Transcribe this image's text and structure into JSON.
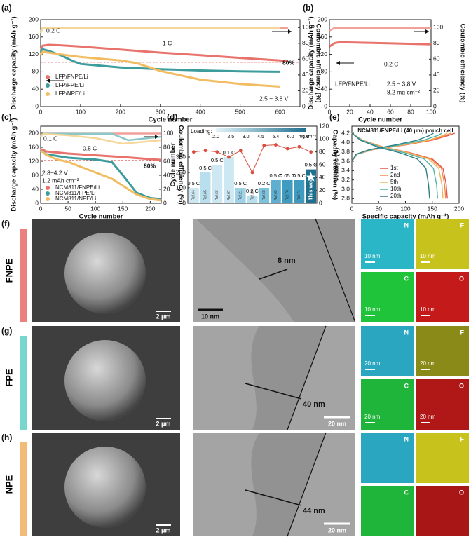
{
  "chart_data": [
    {
      "type": "line",
      "label": "(a)",
      "xlabel": "Cycle number",
      "ylabel": "Discharge capacity (mAh g⁻¹)",
      "y2label": "Coulombic efficiency (%)",
      "xlim": [
        0,
        650
      ],
      "xticks": [
        0,
        100,
        200,
        300,
        400,
        500,
        600
      ],
      "ylim": [
        0,
        200
      ],
      "yticks": [
        0,
        40,
        80,
        120,
        160,
        200
      ],
      "y2lim": [
        0,
        110
      ],
      "y2ticks": [
        0,
        20,
        40,
        60,
        80,
        100
      ],
      "ref_line": 102,
      "ref_color": "#d62728",
      "legend": "lower left",
      "series": [
        {
          "name": "LFP/FNPE/Li",
          "color": "#e8736c",
          "x": [
            0,
            5,
            20,
            50,
            100,
            200,
            300,
            400,
            500,
            600,
            620
          ],
          "values": [
            128,
            140,
            142,
            141,
            138,
            131,
            124,
            118,
            112,
            106,
            104
          ]
        },
        {
          "name": "LFP/FPE/Li",
          "color": "#3d9c9c",
          "x": [
            0,
            5,
            20,
            50,
            80,
            100,
            200,
            300,
            400,
            500,
            600
          ],
          "values": [
            125,
            132,
            128,
            118,
            105,
            98,
            90,
            86,
            83,
            81,
            80
          ]
        },
        {
          "name": "LFP/NPE/Li",
          "color": "#f2bd62",
          "x": [
            0,
            5,
            20,
            50,
            100,
            200,
            240,
            300,
            400,
            500,
            600
          ],
          "values": [
            118,
            126,
            124,
            120,
            114,
            106,
            100,
            82,
            62,
            52,
            46
          ]
        }
      ],
      "ce_series": [
        {
          "color": "#f2a09a",
          "axis": "y2",
          "x": [
            0,
            5,
            620
          ],
          "values": [
            95,
            99.6,
            99.6
          ]
        },
        {
          "color": "#8cc7c7",
          "axis": "y2",
          "x": [
            0,
            5,
            600
          ],
          "values": [
            94,
            99.4,
            99.4
          ]
        },
        {
          "color": "#f6d79a",
          "axis": "y2",
          "x": [
            0,
            5,
            600
          ],
          "values": [
            93,
            99.2,
            99.2
          ]
        }
      ],
      "annotations": [
        "0.2 C",
        "1 C",
        "80%",
        "2.5 ~ 3.8 V"
      ]
    },
    {
      "type": "line",
      "label": "(b)",
      "xlabel": "Cycle number",
      "ylabel": "Discharge capacity (mAh g⁻¹)",
      "y2label": "Coulombic efficiency (%)",
      "xlim": [
        0,
        100
      ],
      "xticks": [
        0,
        20,
        40,
        60,
        80,
        100
      ],
      "ylim": [
        0,
        200
      ],
      "yticks": [
        0,
        40,
        80,
        120,
        160,
        200
      ],
      "y2lim": [
        0,
        110
      ],
      "y2ticks": [
        0,
        20,
        40,
        60,
        80,
        100
      ],
      "series": [
        {
          "name": "LFP/FNPE/Li",
          "color": "#e8736c",
          "x": [
            0,
            5,
            10,
            50,
            100
          ],
          "values": [
            138,
            146,
            148,
            146,
            143
          ]
        }
      ],
      "ce_series": [
        {
          "color": "#f2a09a",
          "axis": "y2",
          "x": [
            0,
            5,
            100
          ],
          "values": [
            96,
            99.5,
            99.5
          ]
        }
      ],
      "annotations": [
        "0.2 C",
        "2.5 ~ 3.8 V",
        "8.2 mg cm⁻²"
      ]
    },
    {
      "type": "line",
      "label": "(c)",
      "xlabel": "Cycle number",
      "ylabel": "Discharge capacity (mAh g⁻¹)",
      "y2label": "Coulombic efficiency (%)",
      "xlim": [
        0,
        220
      ],
      "xticks": [
        0,
        50,
        100,
        150,
        200
      ],
      "ylim": [
        0,
        220
      ],
      "yticks": [
        0,
        40,
        80,
        120,
        160,
        200
      ],
      "y2lim": [
        0,
        110
      ],
      "y2ticks": [
        0,
        20,
        40,
        60,
        80,
        100
      ],
      "ref_line": 122,
      "ref_color": "#d62728",
      "legend": "lower left",
      "series": [
        {
          "name": "NCM811/FNPE/Li",
          "color": "#e8736c",
          "x": [
            0,
            5,
            10,
            50,
            100,
            150,
            200,
            220
          ],
          "values": [
            155,
            152,
            148,
            142,
            137,
            132,
            126,
            124
          ]
        },
        {
          "name": "NCM811/FPE/Li",
          "color": "#3d9c9c",
          "x": [
            0,
            5,
            10,
            50,
            100,
            130,
            150,
            175,
            200,
            220
          ],
          "values": [
            150,
            146,
            140,
            130,
            125,
            118,
            80,
            30,
            15,
            12
          ]
        },
        {
          "name": "NCM811/NPE/Li",
          "color": "#f2bd62",
          "x": [
            0,
            5,
            10,
            30,
            50,
            80,
            100,
            130,
            150,
            175,
            200,
            220
          ],
          "values": [
            150,
            145,
            138,
            125,
            118,
            100,
            88,
            70,
            50,
            25,
            12,
            8
          ]
        }
      ],
      "ce_series": [
        {
          "color": "#f2a09a",
          "axis": "y2",
          "x": [
            0,
            5,
            220
          ],
          "values": [
            95,
            99.5,
            99.5
          ]
        },
        {
          "color": "#8cc7c7",
          "axis": "y2",
          "x": [
            0,
            5,
            130,
            160,
            220
          ],
          "values": [
            95,
            99.3,
            99.3,
            90,
            95
          ]
        },
        {
          "color": "#f6d79a",
          "axis": "y2",
          "x": [
            0,
            5,
            50,
            100,
            150,
            220
          ],
          "values": [
            95,
            99,
            97,
            93,
            85,
            90
          ]
        }
      ],
      "annotations": [
        "0.1 C",
        "0.5 C",
        "80%",
        "2.8~4.2 V",
        "1.2 mAh cm⁻²"
      ]
    },
    {
      "type": "bar",
      "label": "(d)",
      "ylabel": "Cycle number",
      "y2label": "Capacity retention (%)",
      "ylim": [
        0,
        500
      ],
      "yticks": [
        0,
        100,
        200,
        300
      ],
      "y2lim": [
        0,
        120
      ],
      "y2ticks": [
        0,
        20,
        40,
        60,
        80,
        100,
        120
      ],
      "categories": [
        "Ref.64",
        "Ref.65",
        "Ref.66",
        "Ref.67",
        "Ref.21",
        "Ref.23",
        "Ref.68",
        "Ref.69",
        "Ref.70",
        "Ref.71",
        "This work"
      ],
      "values": [
        100,
        200,
        250,
        300,
        100,
        50,
        100,
        150,
        150,
        150,
        220
      ],
      "colors": [
        "#cde8f2",
        "#b8dfed",
        "#cde8f2",
        "#cde8f2",
        "#9fd2e6",
        "#b8dfed",
        "#7fc2dc",
        "#5fb0d0",
        "#3f9cc0",
        "#3f9cc0",
        "#1f6f8f"
      ],
      "rate_labels": [
        "0.5 C",
        "0.5 C",
        "0.5 C",
        "0.1 C",
        "0.5 C",
        "0.2 C",
        "0.2 C",
        "0.5 C",
        "0.05 C",
        "0.5 C",
        "0.5 C"
      ],
      "retention": {
        "color": "#d94e3f",
        "axis": "y2",
        "values": [
          80,
          82,
          80,
          72,
          82,
          48,
          90,
          91,
          85,
          88,
          80
        ]
      },
      "loading_title": "Loading:",
      "loading_labels": [
        "2.0",
        "2.5",
        "3.0",
        "4.5",
        "5.4",
        "6.0",
        "6.8"
      ],
      "loading_unit": "mg cm⁻²"
    },
    {
      "type": "line",
      "label": "(e)",
      "title": "NCM811/FNPE/Li (40 μm) pouch cell",
      "xlabel": "Specific capacity (mAh g⁻¹)",
      "ylabel": "Voltage (V)",
      "xlim": [
        0,
        200
      ],
      "xticks": [
        0,
        50,
        100,
        150,
        200
      ],
      "ylim": [
        2.7,
        4.35
      ],
      "yticks": [
        2.8,
        {
          "value": 3,
          "label": "3.0"
        },
        3.2,
        3.4,
        3.6,
        3.8,
        {
          "value": 4,
          "label": "4.0"
        },
        4.2
      ],
      "legend": "lower left",
      "series": [
        {
          "name": "1st",
          "color": "#e8534a",
          "x": [
            0,
            20,
            60,
            110,
            150,
            170,
            176,
            178,
            null,
            0,
            10,
            40,
            100,
            150,
            180,
            192
          ],
          "values": [
            4.2,
            4.05,
            3.9,
            3.78,
            3.65,
            3.45,
            3.1,
            2.8,
            null,
            3.6,
            3.75,
            3.85,
            3.95,
            4.05,
            4.15,
            4.2
          ]
        },
        {
          "name": "2nd",
          "color": "#f08a4b",
          "x": [
            0,
            20,
            59,
            108,
            147,
            167,
            173,
            175,
            null,
            0,
            10,
            40,
            98,
            147,
            175,
            185
          ],
          "values": [
            4.2,
            4.05,
            3.9,
            3.78,
            3.65,
            3.45,
            3.1,
            2.8,
            null,
            3.6,
            3.75,
            3.85,
            3.95,
            4.05,
            4.15,
            4.2
          ]
        },
        {
          "name": "5th",
          "color": "#f2b45a",
          "x": [
            0,
            19,
            57,
            105,
            143,
            162,
            168,
            170,
            null,
            0,
            10,
            38,
            95,
            143,
            170,
            178
          ],
          "values": [
            4.2,
            4.05,
            3.9,
            3.78,
            3.65,
            3.45,
            3.1,
            2.8,
            null,
            3.6,
            3.75,
            3.85,
            3.95,
            4.05,
            4.15,
            4.2
          ]
        },
        {
          "name": "10th",
          "color": "#4fb3a9",
          "x": [
            0,
            18,
            54,
            99,
            135,
            152,
            158,
            160,
            null,
            0,
            9,
            36,
            89,
            134,
            160,
            168
          ],
          "values": [
            4.2,
            4.05,
            3.9,
            3.78,
            3.65,
            3.45,
            3.1,
            2.8,
            null,
            3.6,
            3.75,
            3.85,
            3.95,
            4.05,
            4.15,
            4.2
          ]
        },
        {
          "name": "20th",
          "color": "#2e7f86",
          "x": [
            0,
            16,
            49,
            90,
            122,
            138,
            143,
            145,
            null,
            0,
            8,
            33,
            81,
            122,
            145,
            152
          ],
          "values": [
            4.2,
            4.05,
            3.9,
            3.78,
            3.65,
            3.45,
            3.1,
            2.8,
            null,
            3.6,
            3.75,
            3.85,
            3.95,
            4.05,
            4.15,
            4.2
          ]
        }
      ]
    }
  ],
  "images": [
    {
      "label": "(f)",
      "name": "FNPE",
      "color": "#e76a6a",
      "sem_scale": "2 μm",
      "tem_thickness": "8 nm",
      "tem_scale": "10 nm",
      "eds": [
        {
          "element": "N",
          "color": "#2bb6c8",
          "scale": "10 nm"
        },
        {
          "element": "F",
          "color": "#c8c21c",
          "scale": "10 nm"
        },
        {
          "element": "C",
          "color": "#1fc43a",
          "scale": "10 nm"
        },
        {
          "element": "O",
          "color": "#c41a1a",
          "scale": "10 nm"
        }
      ]
    },
    {
      "label": "(g)",
      "name": "FPE",
      "color": "#5fcfc6",
      "sem_scale": "2 μm",
      "tem_thickness": "40 nm",
      "tem_scale": "20 nm",
      "eds": [
        {
          "element": "N",
          "color": "#2ba6c0",
          "scale": "20 nm"
        },
        {
          "element": "F",
          "color": "#8a8a18",
          "scale": "20 nm"
        },
        {
          "element": "C",
          "color": "#1fb43a",
          "scale": "20 nm"
        },
        {
          "element": "O",
          "color": "#b01818",
          "scale": "20 nm"
        }
      ]
    },
    {
      "label": "(h)",
      "name": "NPE",
      "color": "#f0b060",
      "sem_scale": "2 μm",
      "tem_thickness": "44 nm",
      "tem_scale": "20 nm",
      "eds": [
        {
          "element": "N",
          "color": "#2ba6c0"
        },
        {
          "element": "F",
          "color": "#c8c21c"
        },
        {
          "element": "C",
          "color": "#1fb43a"
        },
        {
          "element": "O",
          "color": "#a81616"
        }
      ]
    }
  ]
}
